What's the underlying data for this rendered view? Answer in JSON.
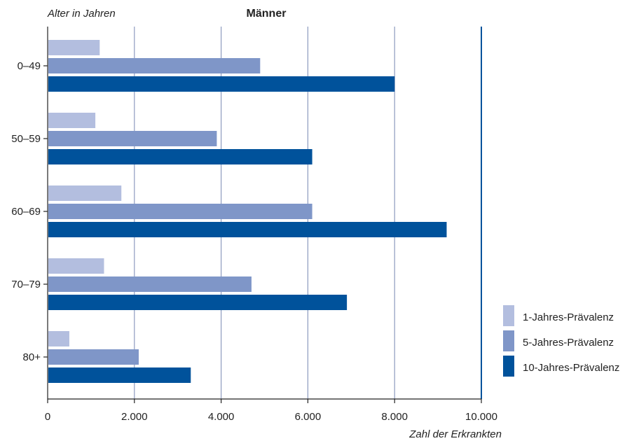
{
  "chart_data": {
    "type": "bar",
    "orientation": "horizontal",
    "title": "Männer",
    "ylabel": "Alter in Jahren",
    "xlabel": "Zahl der Erkrankten",
    "categories": [
      "0–49",
      "50–59",
      "60–69",
      "70–79",
      "80+"
    ],
    "xlim": [
      0,
      10000
    ],
    "xticks": [
      0,
      2000,
      4000,
      6000,
      8000,
      10000
    ],
    "xtick_labels": [
      "0",
      "2.000",
      "4.000",
      "6.000",
      "8.000",
      "10.000"
    ],
    "grid": true,
    "legend_position": "bottom-right",
    "series": [
      {
        "name": "1-Jahres-Prävalenz",
        "color": "#b3bedf",
        "values": [
          1200,
          1100,
          1700,
          1300,
          500
        ]
      },
      {
        "name": "5-Jahres-Prävalenz",
        "color": "#7f96c8",
        "values": [
          4900,
          3900,
          6100,
          4700,
          2100
        ]
      },
      {
        "name": "10-Jahres-Prävalenz",
        "color": "#00529b",
        "values": [
          8000,
          6100,
          9200,
          6900,
          3300
        ]
      }
    ]
  }
}
